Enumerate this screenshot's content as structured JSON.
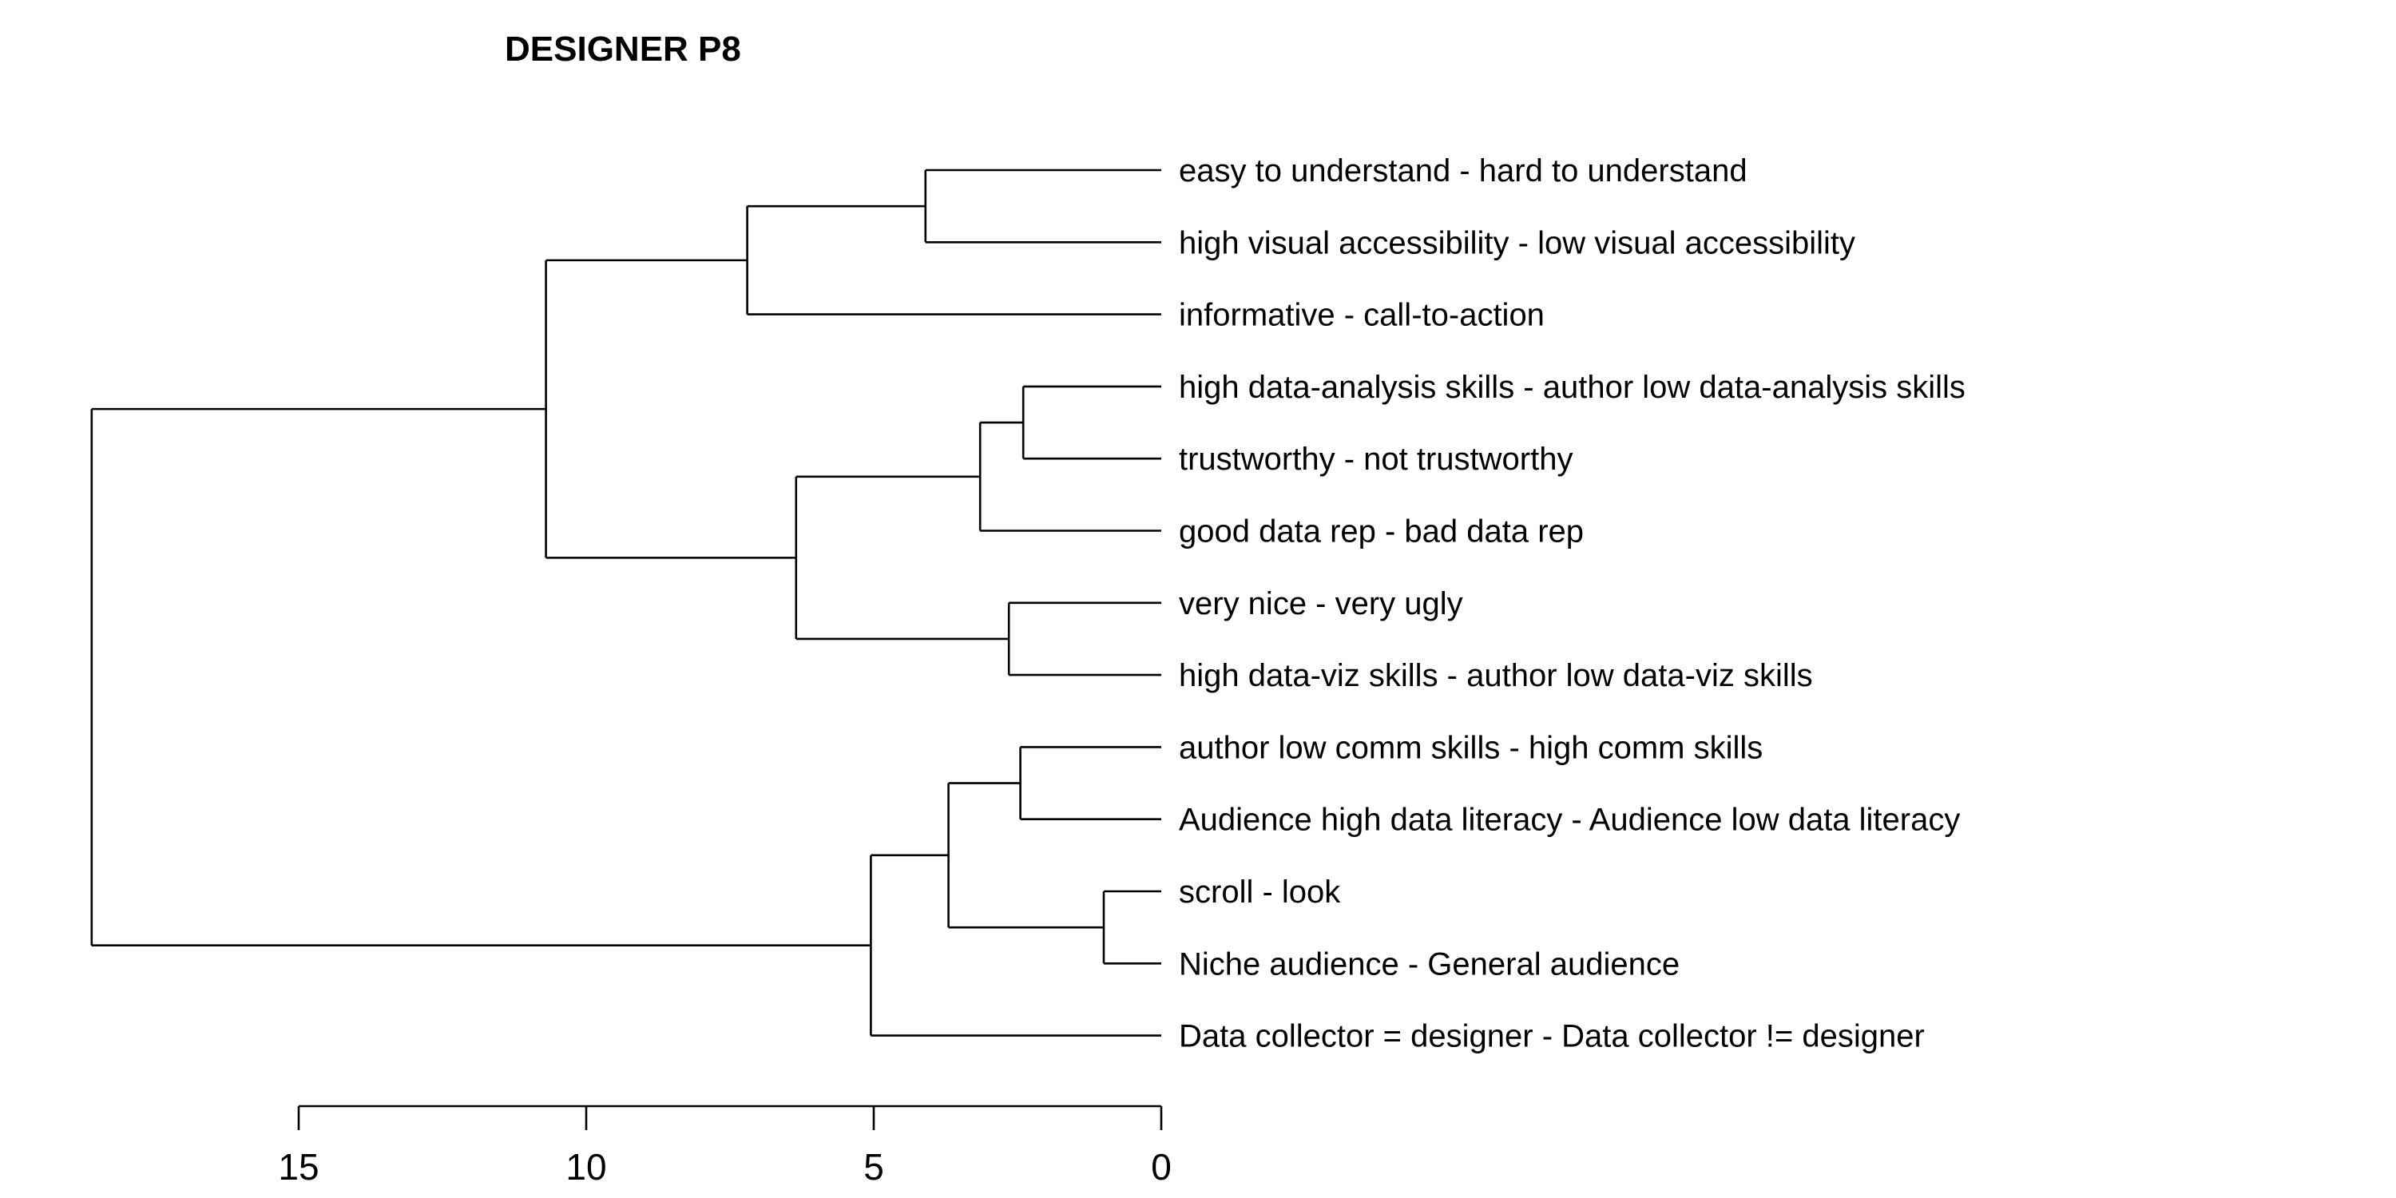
{
  "chart_data": {
    "type": "dendrogram",
    "title": "DESIGNER P8",
    "orientation": "horizontal",
    "leaves": [
      "easy to understand - hard to understand",
      "high visual accessibility  - low visual accessibility",
      "informative - call-to-action",
      "high data-analysis skills - author low data-analysis skills",
      "trustworthy - not trustworthy",
      "good data rep - bad data rep",
      "very nice - very ugly",
      "high data-viz skills - author low data-viz skills",
      "author low comm skills - high comm skills",
      "Audience high data literacy - Audience low data literacy",
      "scroll - look",
      "Niche audience - General audience",
      "Data collector = designer - Data collector != designer"
    ],
    "merges": [
      {
        "id": "m1",
        "children": [
          "L0",
          "L1"
        ],
        "height": 4.1
      },
      {
        "id": "m2",
        "children": [
          "m1",
          "L2"
        ],
        "height": 7.2
      },
      {
        "id": "m3",
        "children": [
          "L3",
          "L4"
        ],
        "height": 2.4
      },
      {
        "id": "m4",
        "children": [
          "m3",
          "L5"
        ],
        "height": 3.15
      },
      {
        "id": "m5",
        "children": [
          "L6",
          "L7"
        ],
        "height": 2.65
      },
      {
        "id": "m6",
        "children": [
          "m4",
          "m5"
        ],
        "height": 6.35
      },
      {
        "id": "m7",
        "children": [
          "m2",
          "m6"
        ],
        "height": 10.7
      },
      {
        "id": "m8",
        "children": [
          "L8",
          "L9"
        ],
        "height": 2.45
      },
      {
        "id": "m9",
        "children": [
          "L10",
          "L11"
        ],
        "height": 1.0
      },
      {
        "id": "m10",
        "children": [
          "m8",
          "m9"
        ],
        "height": 3.7
      },
      {
        "id": "m11",
        "children": [
          "m10",
          "L12"
        ],
        "height": 5.05
      },
      {
        "id": "m12",
        "children": [
          "m7",
          "m11"
        ],
        "height": 18.6
      }
    ],
    "x_axis": {
      "ticks": [
        15,
        10,
        5,
        0
      ],
      "tick_labels": [
        "15",
        "10",
        "5",
        "0"
      ],
      "range": [
        15,
        0
      ]
    }
  }
}
